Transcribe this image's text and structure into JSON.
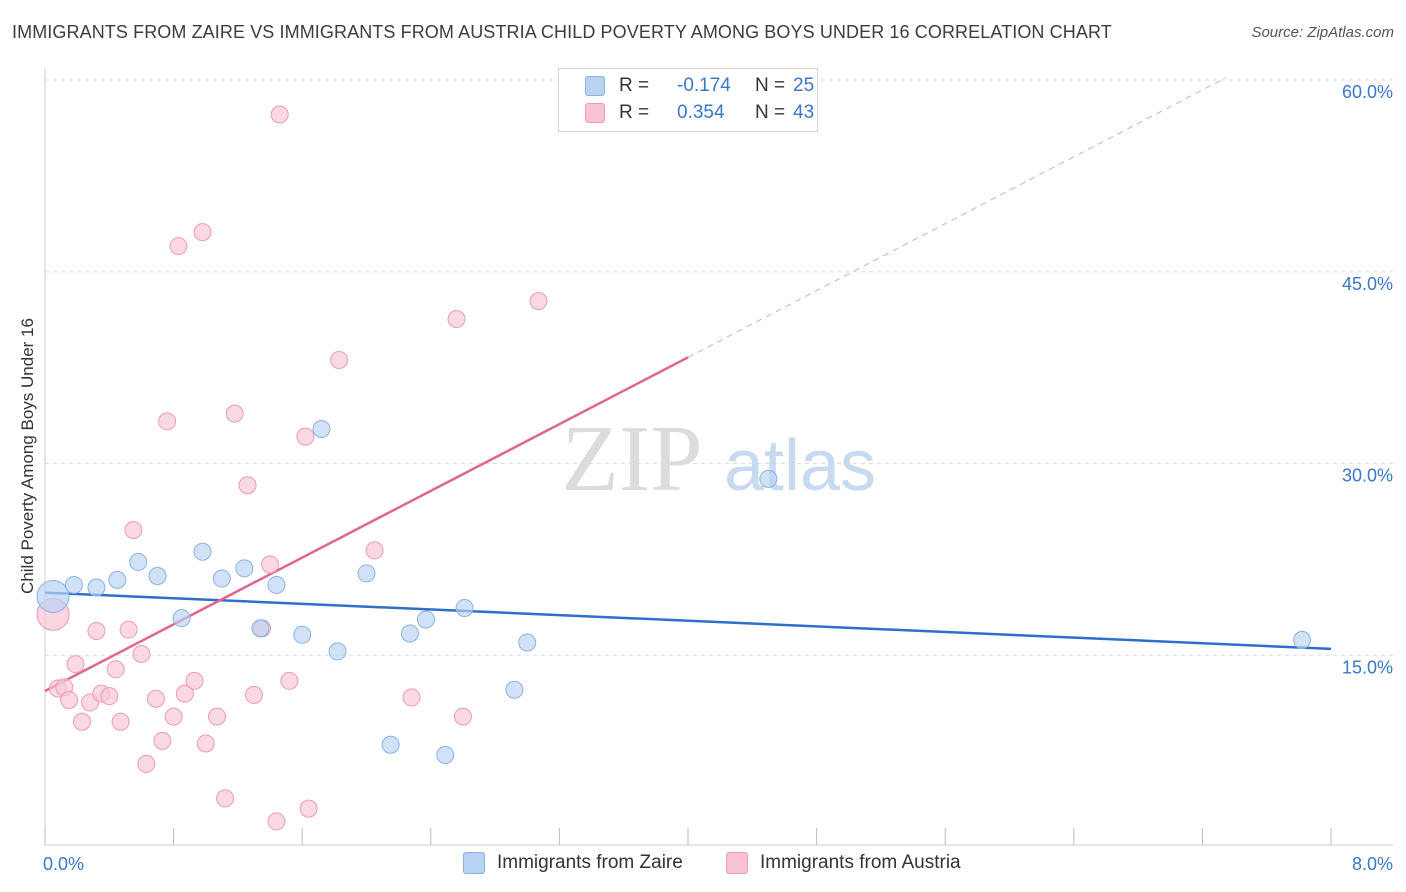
{
  "header": {
    "title": "IMMIGRANTS FROM ZAIRE VS IMMIGRANTS FROM AUSTRIA CHILD POVERTY AMONG BOYS UNDER 16 CORRELATION CHART",
    "source": "Source: ZipAtlas.com"
  },
  "legend": {
    "zaire": {
      "r_label": "R =",
      "r_value": "-0.174",
      "n_label": "N =",
      "n_value": "25"
    },
    "austria": {
      "r_label": "R =",
      "r_value": "0.354",
      "n_label": "N =",
      "n_value": "43"
    }
  },
  "watermark": {
    "zip": "ZIP",
    "atlas": "atlas"
  },
  "colors": {
    "zaire_fill": "#b8d3f2",
    "zaire_stroke": "#88b2e4",
    "zaire_line": "#2f6fcb",
    "austria_fill": "#f8c4d3",
    "austria_stroke": "#ee9ab4",
    "austria_line": "#e0668f",
    "tick_label": "#3a78c9",
    "grid": "#dddddd"
  },
  "chart_data": {
    "type": "scatter",
    "title": "IMMIGRANTS FROM ZAIRE VS IMMIGRANTS FROM AUSTRIA CHILD POVERTY AMONG BOYS UNDER 16 CORRELATION CHART",
    "xlabel": "",
    "ylabel": "Child Poverty Among Boys Under 16",
    "xlim": [
      0,
      8
    ],
    "ylim": [
      0,
      60
    ],
    "x_tick_labels": [
      "0.0%",
      "8.0%"
    ],
    "y_ticks": [
      15,
      30,
      45,
      60
    ],
    "y_tick_labels": [
      "15.0%",
      "30.0%",
      "45.0%",
      "60.0%"
    ],
    "grid": true,
    "legend_position": "top-center",
    "series": [
      {
        "name": "Immigrants from Zaire",
        "points": [
          {
            "x": 0.05,
            "y": 19.6,
            "big": true
          },
          {
            "x": 0.18,
            "y": 20.5
          },
          {
            "x": 0.32,
            "y": 20.3
          },
          {
            "x": 0.45,
            "y": 20.9
          },
          {
            "x": 0.58,
            "y": 22.3
          },
          {
            "x": 0.7,
            "y": 21.2
          },
          {
            "x": 0.85,
            "y": 17.9
          },
          {
            "x": 0.98,
            "y": 23.1
          },
          {
            "x": 1.1,
            "y": 21.0
          },
          {
            "x": 1.24,
            "y": 21.8
          },
          {
            "x": 1.34,
            "y": 17.1
          },
          {
            "x": 1.44,
            "y": 20.5
          },
          {
            "x": 1.6,
            "y": 16.6
          },
          {
            "x": 1.72,
            "y": 32.7
          },
          {
            "x": 1.82,
            "y": 15.3
          },
          {
            "x": 2.0,
            "y": 21.4
          },
          {
            "x": 2.15,
            "y": 8.0
          },
          {
            "x": 2.27,
            "y": 16.7
          },
          {
            "x": 2.37,
            "y": 17.8
          },
          {
            "x": 2.49,
            "y": 7.2
          },
          {
            "x": 2.61,
            "y": 18.7
          },
          {
            "x": 2.92,
            "y": 12.3
          },
          {
            "x": 3.0,
            "y": 16.0
          },
          {
            "x": 4.5,
            "y": 28.8
          },
          {
            "x": 7.82,
            "y": 16.2
          }
        ],
        "trend": {
          "x0": 0.0,
          "y0": 19.9,
          "x1": 8.0,
          "y1": 15.5
        }
      },
      {
        "name": "Immigrants from Austria",
        "points": [
          {
            "x": 0.05,
            "y": 18.2,
            "big": true
          },
          {
            "x": 0.08,
            "y": 12.4
          },
          {
            "x": 0.12,
            "y": 12.5
          },
          {
            "x": 0.15,
            "y": 11.5
          },
          {
            "x": 0.19,
            "y": 14.3
          },
          {
            "x": 0.23,
            "y": 9.8
          },
          {
            "x": 0.28,
            "y": 11.3
          },
          {
            "x": 0.32,
            "y": 16.9
          },
          {
            "x": 0.35,
            "y": 12.0
          },
          {
            "x": 0.4,
            "y": 11.8
          },
          {
            "x": 0.44,
            "y": 13.9
          },
          {
            "x": 0.47,
            "y": 9.8
          },
          {
            "x": 0.52,
            "y": 17.0
          },
          {
            "x": 0.55,
            "y": 24.8
          },
          {
            "x": 0.6,
            "y": 15.1
          },
          {
            "x": 0.63,
            "y": 6.5
          },
          {
            "x": 0.69,
            "y": 11.6
          },
          {
            "x": 0.73,
            "y": 8.3
          },
          {
            "x": 0.76,
            "y": 33.3
          },
          {
            "x": 0.8,
            "y": 10.2
          },
          {
            "x": 0.83,
            "y": 47.0
          },
          {
            "x": 0.87,
            "y": 12.0
          },
          {
            "x": 0.93,
            "y": 13.0
          },
          {
            "x": 0.98,
            "y": 48.1
          },
          {
            "x": 1.0,
            "y": 8.1
          },
          {
            "x": 1.07,
            "y": 10.2
          },
          {
            "x": 1.12,
            "y": 3.8
          },
          {
            "x": 1.18,
            "y": 33.9
          },
          {
            "x": 1.26,
            "y": 28.3
          },
          {
            "x": 1.3,
            "y": 11.9
          },
          {
            "x": 1.35,
            "y": 17.1
          },
          {
            "x": 1.4,
            "y": 22.1
          },
          {
            "x": 1.44,
            "y": 2.0
          },
          {
            "x": 1.52,
            "y": 13.0
          },
          {
            "x": 1.46,
            "y": 57.3
          },
          {
            "x": 1.62,
            "y": 32.1
          },
          {
            "x": 1.64,
            "y": 3.0
          },
          {
            "x": 1.83,
            "y": 38.1
          },
          {
            "x": 2.05,
            "y": 23.2
          },
          {
            "x": 2.28,
            "y": 11.7
          },
          {
            "x": 2.56,
            "y": 41.3
          },
          {
            "x": 2.6,
            "y": 10.2
          },
          {
            "x": 3.07,
            "y": 42.7
          }
        ],
        "trend": {
          "x0": 0.0,
          "y0": 12.2,
          "x1": 4.0,
          "y1": 38.3
        },
        "trend_extension": {
          "x0": 4.0,
          "y0": 38.3,
          "x1": 7.35,
          "y1": 60.2
        }
      }
    ]
  },
  "bottom_legend": {
    "zaire": "Immigrants from Zaire",
    "austria": "Immigrants from Austria"
  }
}
